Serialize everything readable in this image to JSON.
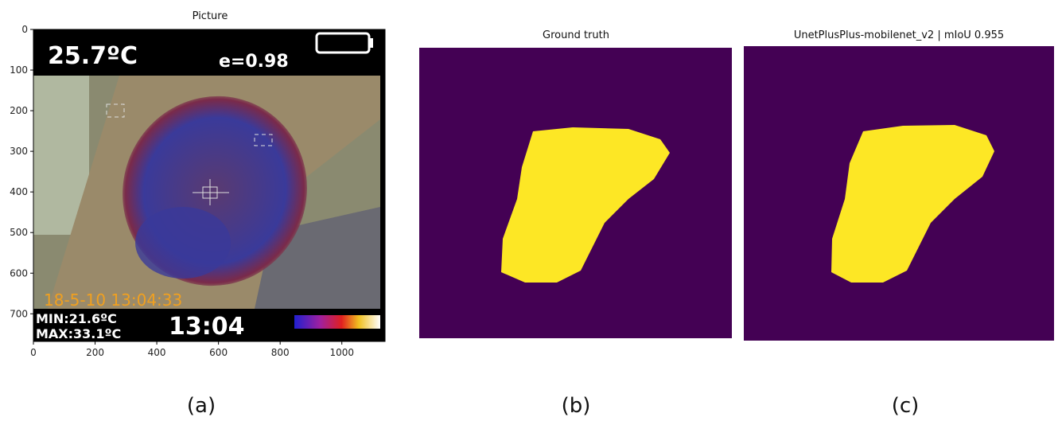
{
  "panels": [
    {
      "title": "Picture",
      "caption": "(a)",
      "xlim": [
        0,
        1140
      ],
      "ylim": [
        0,
        768
      ],
      "y_inverted": true,
      "xticks": [
        0,
        200,
        400,
        600,
        800,
        1000
      ],
      "yticks": [
        0,
        100,
        200,
        300,
        400,
        500,
        600,
        700
      ],
      "overlay": {
        "temperature": "25.7ºC",
        "emissivity": "e=0.98",
        "timestamp": "18-5-10 13:04:33",
        "min": "MIN:21.6ºC",
        "max": "MAX:33.1ºC",
        "clock": "13:04"
      }
    },
    {
      "title": "Ground truth",
      "caption": "(b)"
    },
    {
      "title": "UnetPlusPlus-mobilenet_v2 | mIoU 0.955",
      "caption": "(c)"
    }
  ]
}
